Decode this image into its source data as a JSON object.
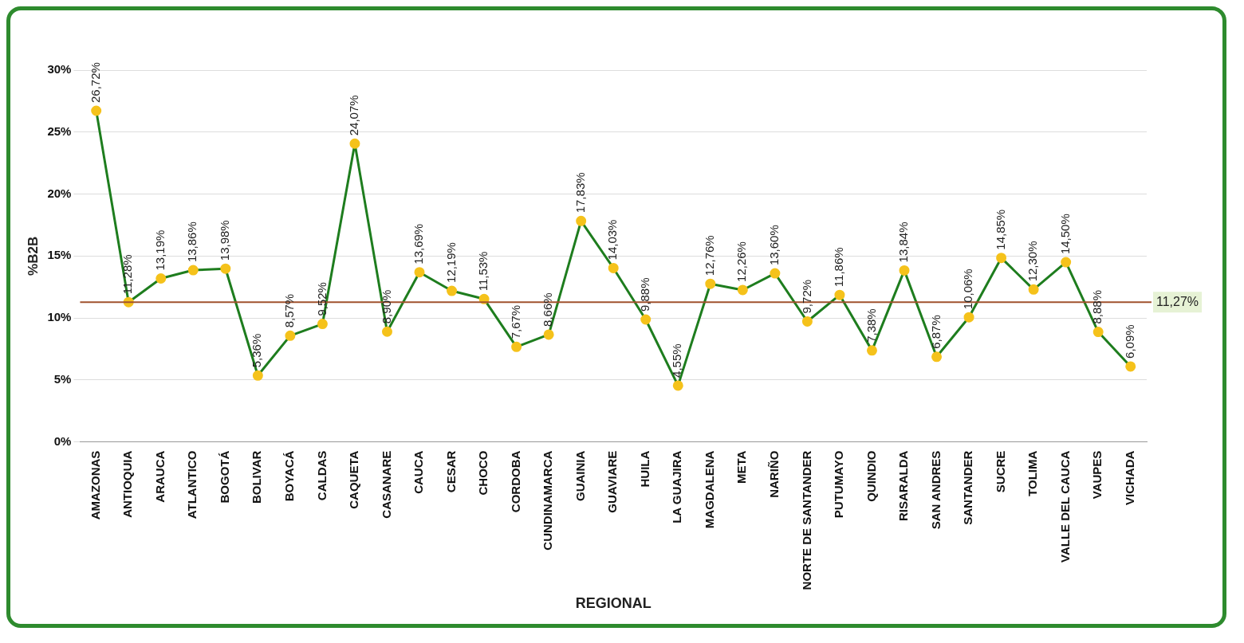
{
  "chart_data": {
    "type": "line",
    "xlabel": "REGIONAL",
    "ylabel": "%B2B",
    "categories": [
      "AMAZONAS",
      "ANTIOQUIA",
      "ARAUCA",
      "ATLANTICO",
      "BOGOTÁ",
      "BOLIVAR",
      "BOYACÁ",
      "CALDAS",
      "CAQUETA",
      "CASANARE",
      "CAUCA",
      "CESAR",
      "CHOCO",
      "CORDOBA",
      "CUNDINAMARCA",
      "GUAINIA",
      "GUAVIARE",
      "HUILA",
      "LA GUAJIRA",
      "MAGDALENA",
      "META",
      "NARIÑO",
      "NORTE DE SANTANDER",
      "PUTUMAYO",
      "QUINDIO",
      "RISARALDA",
      "SAN ANDRES",
      "SANTANDER",
      "SUCRE",
      "TOLIMA",
      "VALLE DEL CAUCA",
      "VAUPES",
      "VICHADA"
    ],
    "series": [
      {
        "color": "#1e7d1e",
        "values": [
          26.72,
          11.28,
          13.19,
          13.86,
          13.98,
          5.36,
          8.57,
          9.52,
          24.07,
          8.9,
          13.69,
          12.19,
          11.53,
          7.67,
          8.66,
          17.83,
          14.03,
          9.88,
          4.55,
          12.76,
          12.26,
          13.6,
          9.72,
          11.86,
          7.38,
          13.84,
          6.87,
          10.06,
          14.85,
          12.3,
          14.5,
          8.88,
          6.09
        ],
        "value_labels": [
          "26,72%",
          "11,28%",
          "13,19%",
          "13,86%",
          "13,98%",
          "5,36%",
          "8,57%",
          "9,52%",
          "24,07%",
          "8,90%",
          "13,69%",
          "12,19%",
          "11,53%",
          "7,67%",
          "8,66%",
          "17,83%",
          "14,03%",
          "9,88%",
          "4,55%",
          "12,76%",
          "12,26%",
          "13,60%",
          "9,72%",
          "11,86%",
          "7,38%",
          "13,84%",
          "6,87%",
          "10,06%",
          "14,85%",
          "12,30%",
          "14,50%",
          "8,88%",
          "6,09%"
        ]
      }
    ],
    "ylim": [
      0,
      30
    ],
    "yticks": [
      {
        "value": 0,
        "label": "0%"
      },
      {
        "value": 5,
        "label": "5%"
      },
      {
        "value": 10,
        "label": "10%"
      },
      {
        "value": 15,
        "label": "15%"
      },
      {
        "value": 20,
        "label": "20%"
      },
      {
        "value": 25,
        "label": "25%"
      },
      {
        "value": 30,
        "label": "30%"
      }
    ],
    "grid": "y",
    "legend": false,
    "marker": "circle",
    "line_style": "solid",
    "ref_lines": [
      {
        "axis": "y",
        "value": 11.27,
        "label": "11,27%",
        "color": "#a0522d"
      }
    ]
  }
}
